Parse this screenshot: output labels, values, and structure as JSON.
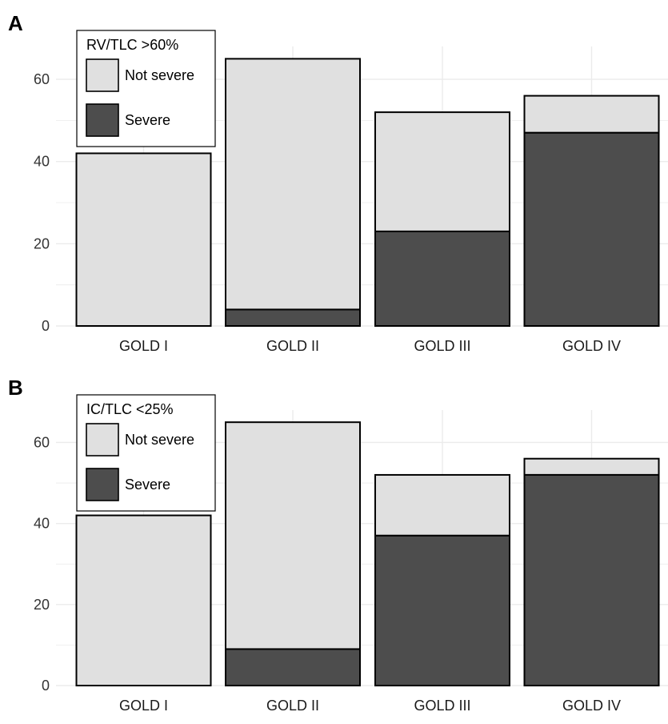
{
  "colors": {
    "not_severe": "#e0e0e0",
    "severe": "#4d4d4d",
    "outline": "#000000",
    "grid": "#ebebeb",
    "text": "#000000"
  },
  "chart_data": [
    {
      "panel_label": "A",
      "type": "bar",
      "stacked": true,
      "categories": [
        "GOLD I",
        "GOLD II",
        "GOLD III",
        "GOLD IV"
      ],
      "series": [
        {
          "name": "Severe",
          "values": [
            0,
            4,
            23,
            47
          ]
        },
        {
          "name": "Not severe",
          "values": [
            42,
            61,
            29,
            9
          ]
        }
      ],
      "yticks": [
        0,
        20,
        40,
        60
      ],
      "ylim": [
        0,
        68
      ],
      "grid": true,
      "legend": {
        "title": "RV/TLC >60%",
        "entries": [
          "Not severe",
          "Severe"
        ],
        "position": "top-left"
      }
    },
    {
      "panel_label": "B",
      "type": "bar",
      "stacked": true,
      "categories": [
        "GOLD I",
        "GOLD II",
        "GOLD III",
        "GOLD IV"
      ],
      "series": [
        {
          "name": "Severe",
          "values": [
            0,
            9,
            37,
            52
          ]
        },
        {
          "name": "Not severe",
          "values": [
            42,
            56,
            15,
            4
          ]
        }
      ],
      "yticks": [
        0,
        20,
        40,
        60
      ],
      "ylim": [
        0,
        68
      ],
      "grid": true,
      "legend": {
        "title": "IC/TLC <25%",
        "entries": [
          "Not severe",
          "Severe"
        ],
        "position": "top-left"
      }
    }
  ]
}
